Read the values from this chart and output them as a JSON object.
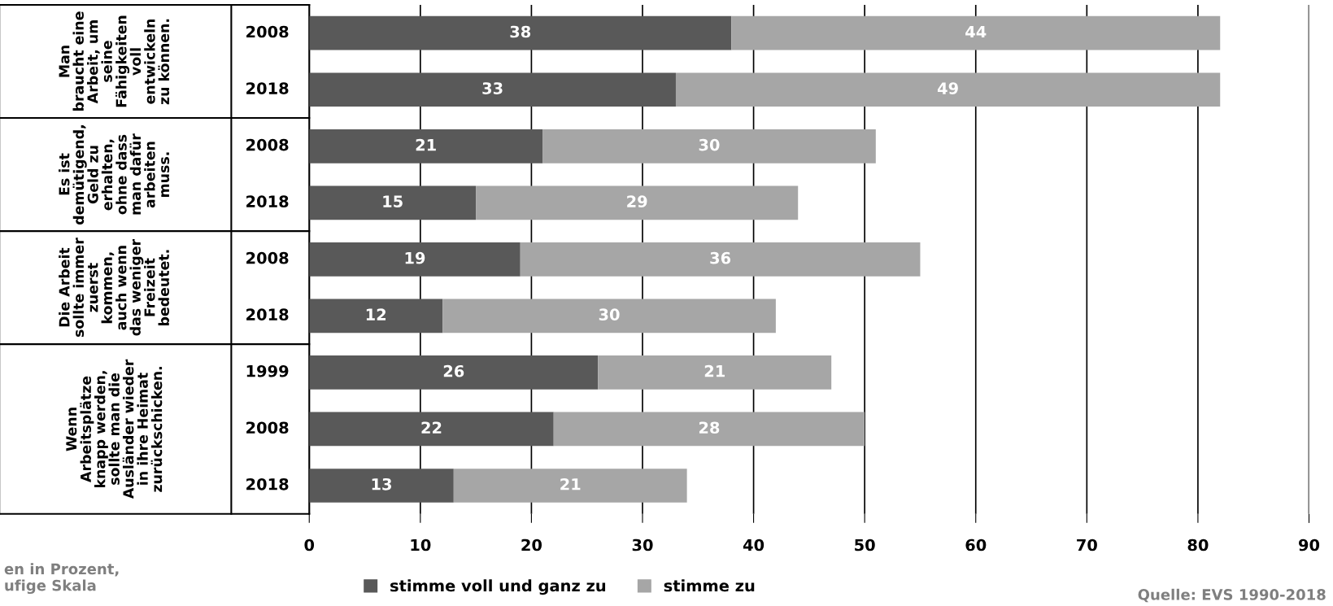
{
  "chart_data": {
    "type": "bar",
    "orientation": "horizontal",
    "stacked": true,
    "categories": [
      "2008",
      "2018",
      "2008",
      "2018",
      "2008",
      "2018",
      "1999",
      "2008",
      "2018"
    ],
    "series": [
      {
        "name": "stimme voll und ganz zu",
        "color": "#595959",
        "values": [
          38,
          33,
          21,
          15,
          19,
          12,
          26,
          22,
          13
        ]
      },
      {
        "name": "stimme zu",
        "color": "#a6a6a6",
        "values": [
          44,
          49,
          30,
          29,
          36,
          30,
          21,
          28,
          21
        ]
      }
    ],
    "xlim": [
      0,
      90
    ],
    "xticks": [
      0,
      10,
      20,
      30,
      40,
      50,
      60,
      70,
      80,
      90
    ],
    "grid": "x",
    "legend": "bottom",
    "data_labels": true,
    "annotations": [
      "Man\nbraucht eine\nArbeit, um\nseine\nFähigkeiten\nvoll\nentwickeln\nzu können.",
      "Es ist\ndemütigend,\nGeld zu\nerhalten,\nohne dass\nman dafür\narbeiten\nmuss.",
      "Die Arbeit\nsollte immer\nzuerst\nkommen,\nauch wenn\ndas weniger\nFreizeit\nbedeutet.",
      "Wenn\nArbeitsplätze\nknapp werden,\nsollte man die\nAusländer wieder\nin ihre Heimat\nzurückschicken.",
      "en in Prozent,\nufige Skala",
      "Quelle: EVS 1990-2018"
    ]
  }
}
